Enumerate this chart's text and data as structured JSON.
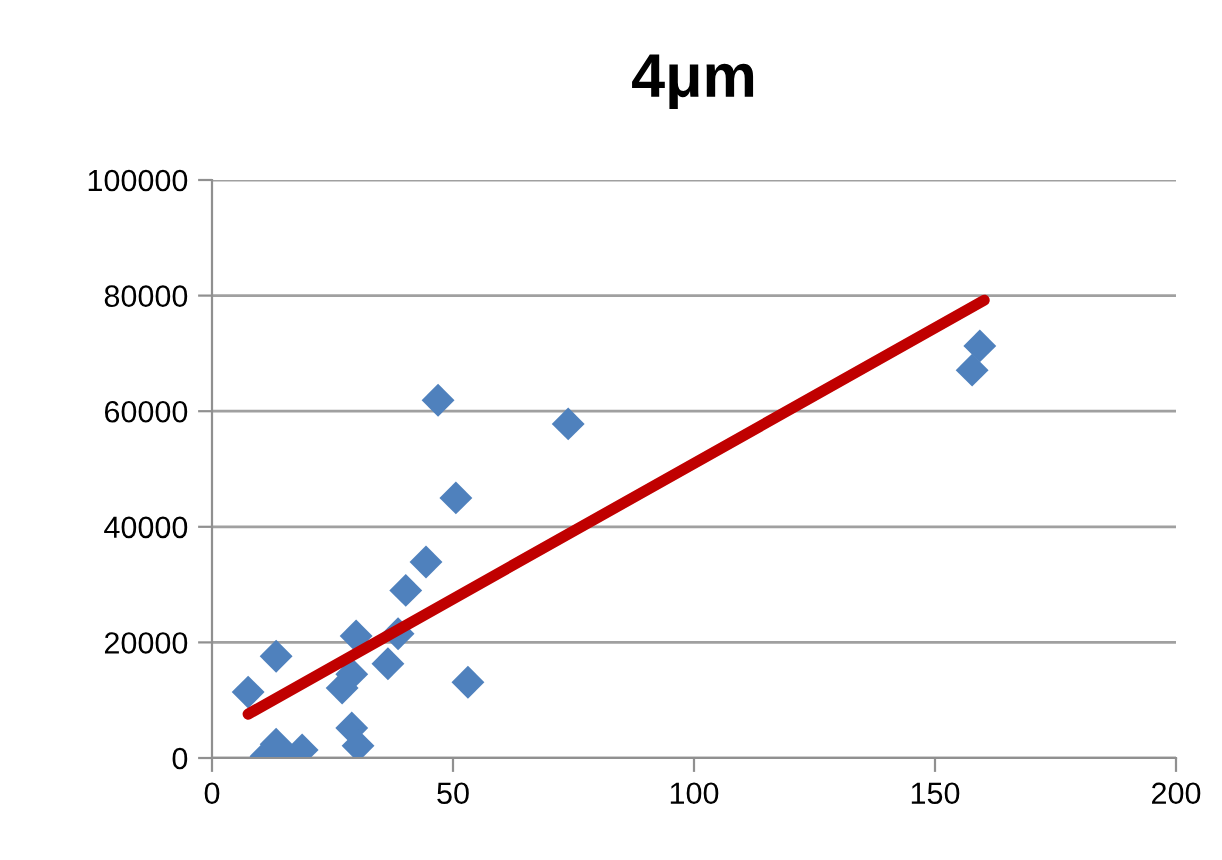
{
  "chart_data": {
    "type": "scatter",
    "title": "4μm",
    "xlim": [
      0,
      200
    ],
    "xticks": [
      0,
      50,
      100,
      150,
      200
    ],
    "ylim": [
      0,
      100000
    ],
    "yticks": [
      0,
      20000,
      40000,
      60000,
      80000,
      100000
    ],
    "grid": "y",
    "series": [
      {
        "marker": "diamond",
        "color": "#4f81bd",
        "x": [
          7.5,
          13.3,
          11.2,
          13.3,
          15,
          18.7,
          29.9,
          27,
          29,
          29,
          30.3,
          36.5,
          38.6,
          40.2,
          44.4,
          46.9,
          50.6,
          73.9,
          53.1,
          159.3,
          157.7
        ],
        "values": [
          11400,
          17600,
          300,
          2400,
          0,
          1400,
          21100,
          12100,
          14500,
          5200,
          2100,
          16300,
          21500,
          29000,
          33900,
          61900,
          45000,
          57800,
          13100,
          71300,
          67100
        ]
      },
      {
        "type": "line",
        "color": "#c00000",
        "x": [
          7.5,
          160.2
        ],
        "values": [
          7600,
          79200
        ]
      }
    ]
  }
}
